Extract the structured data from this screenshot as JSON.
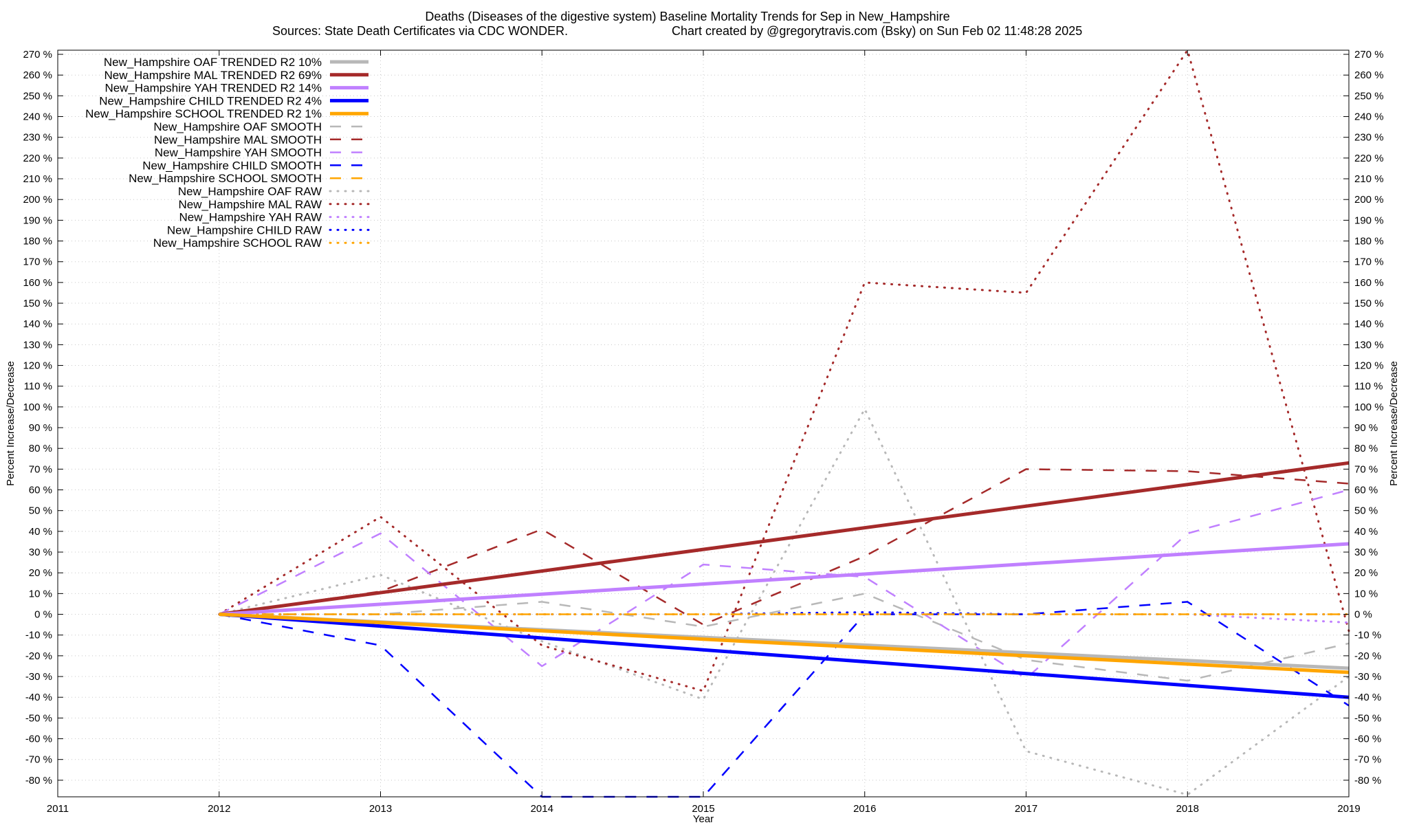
{
  "titles": {
    "line1": "Deaths (Diseases of the digestive system)  Baseline Mortality Trends for Sep in New_Hampshire",
    "line2_left": "Sources: State Death Certificates via CDC WONDER.",
    "line2_right": "Chart created by @gregorytravis.com (Bsky) on Sun Feb 02 11:48:28 2025"
  },
  "chart_data": {
    "type": "line",
    "title": "Deaths (Diseases of the digestive system)  Baseline Mortality Trends for Sep in New_Hampshire",
    "xlabel": "Year",
    "ylabel": "Percent Increase/Decrease",
    "ylabel_right": "Percent Increase/Decrease",
    "xlim": [
      2011,
      2019
    ],
    "ylim": [
      -88,
      272
    ],
    "x_ticks": [
      2011,
      2012,
      2013,
      2014,
      2015,
      2016,
      2017,
      2018,
      2019
    ],
    "y_ticks": [
      -80,
      -70,
      -60,
      -50,
      -40,
      -30,
      -20,
      -10,
      0,
      10,
      20,
      30,
      40,
      50,
      60,
      70,
      80,
      90,
      100,
      110,
      120,
      130,
      140,
      150,
      160,
      170,
      180,
      190,
      200,
      210,
      220,
      230,
      240,
      250,
      260,
      270
    ],
    "y_tick_suffix": " %",
    "grid": true,
    "legend_position": "top-left",
    "series": [
      {
        "name": "New_Hampshire OAF TRENDED R2  10%",
        "style": "trend",
        "color": "#b8b8b8",
        "x": [
          2012,
          2019
        ],
        "y": [
          0,
          -26
        ]
      },
      {
        "name": "New_Hampshire MAL TRENDED R2  69%",
        "style": "trend",
        "color": "#a52a2a",
        "x": [
          2012,
          2019
        ],
        "y": [
          0,
          73
        ]
      },
      {
        "name": "New_Hampshire YAH TRENDED R2  14%",
        "style": "trend",
        "color": "#c080ff",
        "x": [
          2012,
          2019
        ],
        "y": [
          0,
          34
        ]
      },
      {
        "name": "New_Hampshire CHILD TRENDED R2   4%",
        "style": "trend",
        "color": "#0000ff",
        "x": [
          2012,
          2019
        ],
        "y": [
          0,
          -40
        ]
      },
      {
        "name": "New_Hampshire SCHOOL TRENDED R2   1%",
        "style": "trend",
        "color": "#ffa500",
        "x": [
          2012,
          2019
        ],
        "y": [
          0,
          -28
        ]
      },
      {
        "name": "New_Hampshire OAF SMOOTH",
        "style": "smooth",
        "color": "#b8b8b8",
        "x": [
          2012,
          2013,
          2014,
          2015,
          2016,
          2017,
          2018,
          2019
        ],
        "y": [
          0,
          0,
          6,
          -6,
          10,
          -22,
          -32,
          -14
        ]
      },
      {
        "name": "New_Hampshire MAL SMOOTH",
        "style": "smooth",
        "color": "#a52a2a",
        "x": [
          2012,
          2013,
          2014,
          2015,
          2016,
          2017,
          2018,
          2019
        ],
        "y": [
          0,
          11,
          41,
          -5,
          28,
          70,
          69,
          63
        ]
      },
      {
        "name": "New_Hampshire YAH SMOOTH",
        "style": "smooth",
        "color": "#c080ff",
        "x": [
          2012,
          2013,
          2014,
          2015,
          2016,
          2017,
          2018,
          2019
        ],
        "y": [
          0,
          39,
          -25,
          24,
          18,
          -31,
          39,
          60
        ]
      },
      {
        "name": "New_Hampshire CHILD SMOOTH",
        "style": "smooth",
        "color": "#0000ff",
        "x": [
          2012,
          2013,
          2014,
          2015,
          2016,
          2017,
          2018,
          2019
        ],
        "y": [
          0,
          -15,
          -88,
          -88,
          0,
          0,
          6,
          -44
        ]
      },
      {
        "name": "New_Hampshire SCHOOL SMOOTH",
        "style": "smooth",
        "color": "#ffa500",
        "x": [
          2012,
          2013,
          2014,
          2015,
          2016,
          2017,
          2018,
          2019
        ],
        "y": [
          0,
          0,
          0,
          0,
          0,
          0,
          0,
          0
        ]
      },
      {
        "name": "New_Hampshire OAF RAW",
        "style": "raw",
        "color": "#b8b8b8",
        "x": [
          2012,
          2013,
          2014,
          2015,
          2016,
          2017,
          2018,
          2019
        ],
        "y": [
          0,
          19,
          -13,
          -41,
          99,
          -66,
          -87,
          -30
        ]
      },
      {
        "name": "New_Hampshire MAL RAW",
        "style": "raw",
        "color": "#a52a2a",
        "x": [
          2012,
          2013,
          2014,
          2015,
          2016,
          2017,
          2018,
          2019
        ],
        "y": [
          0,
          47,
          -15,
          -37,
          160,
          155,
          272,
          -8
        ]
      },
      {
        "name": "New_Hampshire YAH RAW",
        "style": "raw",
        "color": "#c080ff",
        "x": [
          2012,
          2013,
          2014,
          2015,
          2016,
          2017,
          2018,
          2019
        ],
        "y": [
          0,
          0,
          0,
          0,
          0,
          0,
          0,
          -4
        ]
      },
      {
        "name": "New_Hampshire CHILD RAW",
        "style": "raw",
        "color": "#0000ff",
        "x": [
          2012,
          2013,
          2014,
          2015,
          2016,
          2017,
          2018,
          2019
        ],
        "y": [
          0,
          0,
          0,
          0,
          1,
          0,
          0,
          0
        ]
      },
      {
        "name": "New_Hampshire SCHOOL RAW",
        "style": "raw",
        "color": "#ffa500",
        "x": [
          2012,
          2013,
          2014,
          2015,
          2016,
          2017,
          2018,
          2019
        ],
        "y": [
          0,
          0,
          0,
          0,
          0,
          0,
          0,
          0
        ]
      }
    ]
  }
}
